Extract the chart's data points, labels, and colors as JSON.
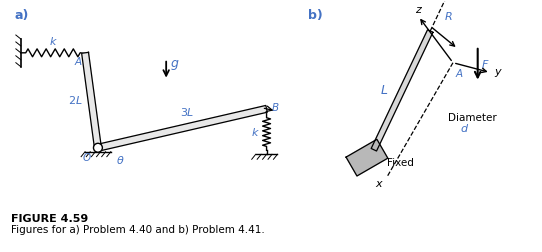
{
  "fig_width": 5.42,
  "fig_height": 2.52,
  "dpi": 100,
  "bg_color": "#ffffff",
  "label_color": "#4472c4",
  "line_color": "#000000",
  "figure_label": "FIGURE 4.59",
  "caption": "Figures for a) Problem 4.40 and b) Problem 4.41.",
  "part_a_label": "a)",
  "part_b_label": "b)"
}
